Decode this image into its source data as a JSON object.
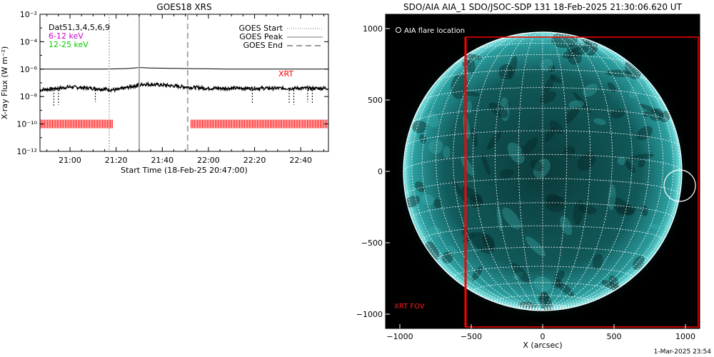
{
  "left_panel": {
    "title": "GOES18 XRS",
    "ylabel": "X-ray Flux (W m⁻²)",
    "xlabel": "Start Time (18-Feb-25 20:47:00)",
    "legend_left": [
      {
        "text": "Dat51,3,4,5,6,9",
        "color": "#000000"
      },
      {
        "text": "6-12 keV",
        "color": "#cc00cc"
      },
      {
        "text": "12-25 keV",
        "color": "#00cc00"
      }
    ],
    "legend_right": [
      {
        "text": "GOES Start",
        "style": "dotted"
      },
      {
        "text": "GOES Peak",
        "style": "solid"
      },
      {
        "text": "GOES End",
        "style": "dashed"
      }
    ],
    "xrt_label": "XRT"
  },
  "right_panel": {
    "title": "SDO/AIA AIA_1 SDO/JSOC-SDP 131 18-Feb-2025 21:30:06.620 UT",
    "legend_text": "AIA flare location",
    "fov_label": "XRT FOV",
    "xlabel": "X (arcsec)",
    "footer": "1-Mar-2025 23:54"
  },
  "chart_data": [
    {
      "type": "line",
      "title": "GOES18 XRS",
      "xlabel": "Start Time (18-Feb-25 20:47:00)",
      "ylabel": "X-ray Flux (W m⁻²)",
      "xlim": [
        "20:47",
        "22:52"
      ],
      "ylim": [
        1e-12,
        0.01
      ],
      "yscale": "log",
      "x_ticks": [
        "21:00",
        "21:20",
        "21:40",
        "22:00",
        "22:20",
        "22:40"
      ],
      "y_ticks": [
        "10⁻¹²",
        "10⁻¹⁰",
        "10⁻⁸",
        "10⁻⁶",
        "10⁻⁴",
        "10⁻²"
      ],
      "series": [
        {
          "name": "Dat51,3,4,5,6,9",
          "color": "#000000",
          "x": [
            "20:47",
            "21:00",
            "21:15",
            "21:25",
            "21:30",
            "21:35",
            "21:50",
            "22:10",
            "22:30",
            "22:52"
          ],
          "y": [
            1e-06,
            1e-06,
            1e-06,
            1.1e-06,
            1.3e-06,
            1.2e-06,
            1.1e-06,
            1e-06,
            1e-06,
            1e-06
          ]
        },
        {
          "name": "Dat51,3,4,5,6,9",
          "color": "#000000",
          "x": [
            "20:47",
            "20:55",
            "21:00",
            "21:10",
            "21:20",
            "21:28",
            "21:32",
            "21:40",
            "21:50",
            "22:00",
            "22:20",
            "22:40",
            "22:52"
          ],
          "y": [
            3e-08,
            4e-08,
            5e-08,
            4e-08,
            3e-08,
            6e-08,
            8e-08,
            7e-08,
            5e-08,
            4e-08,
            4e-08,
            4e-08,
            4e-08
          ]
        }
      ],
      "vertical_markers": [
        {
          "label": "GOES Start",
          "x": "21:17",
          "style": "dotted"
        },
        {
          "label": "GOES Peak",
          "x": "21:30",
          "style": "solid"
        },
        {
          "label": "GOES End",
          "x": "21:51",
          "style": "dashed"
        }
      ],
      "xrt_coverage": [
        [
          "20:47",
          "21:19"
        ],
        [
          "21:52",
          "22:52"
        ]
      ],
      "xrt_level": 1e-10
    },
    {
      "type": "scatter",
      "title": "SDO/AIA AIA_1 SDO/JSOC-SDP 131 18-Feb-2025 21:30:06.620 UT",
      "xlabel": "X (arcsec)",
      "ylabel": "",
      "xlim": [
        -1100,
        1100
      ],
      "ylim": [
        -1100,
        1100
      ],
      "x_ticks": [
        -1000,
        -500,
        0,
        500,
        1000
      ],
      "y_ticks": [
        -1000,
        -500,
        0,
        500,
        1000
      ],
      "solar_radius_arcsec": 975,
      "flare_location": {
        "x": 960,
        "y": -100,
        "radius": 110
      },
      "xrt_fov": {
        "x0": -540,
        "x1": 1090,
        "y0": -1090,
        "y1": 940
      }
    }
  ]
}
